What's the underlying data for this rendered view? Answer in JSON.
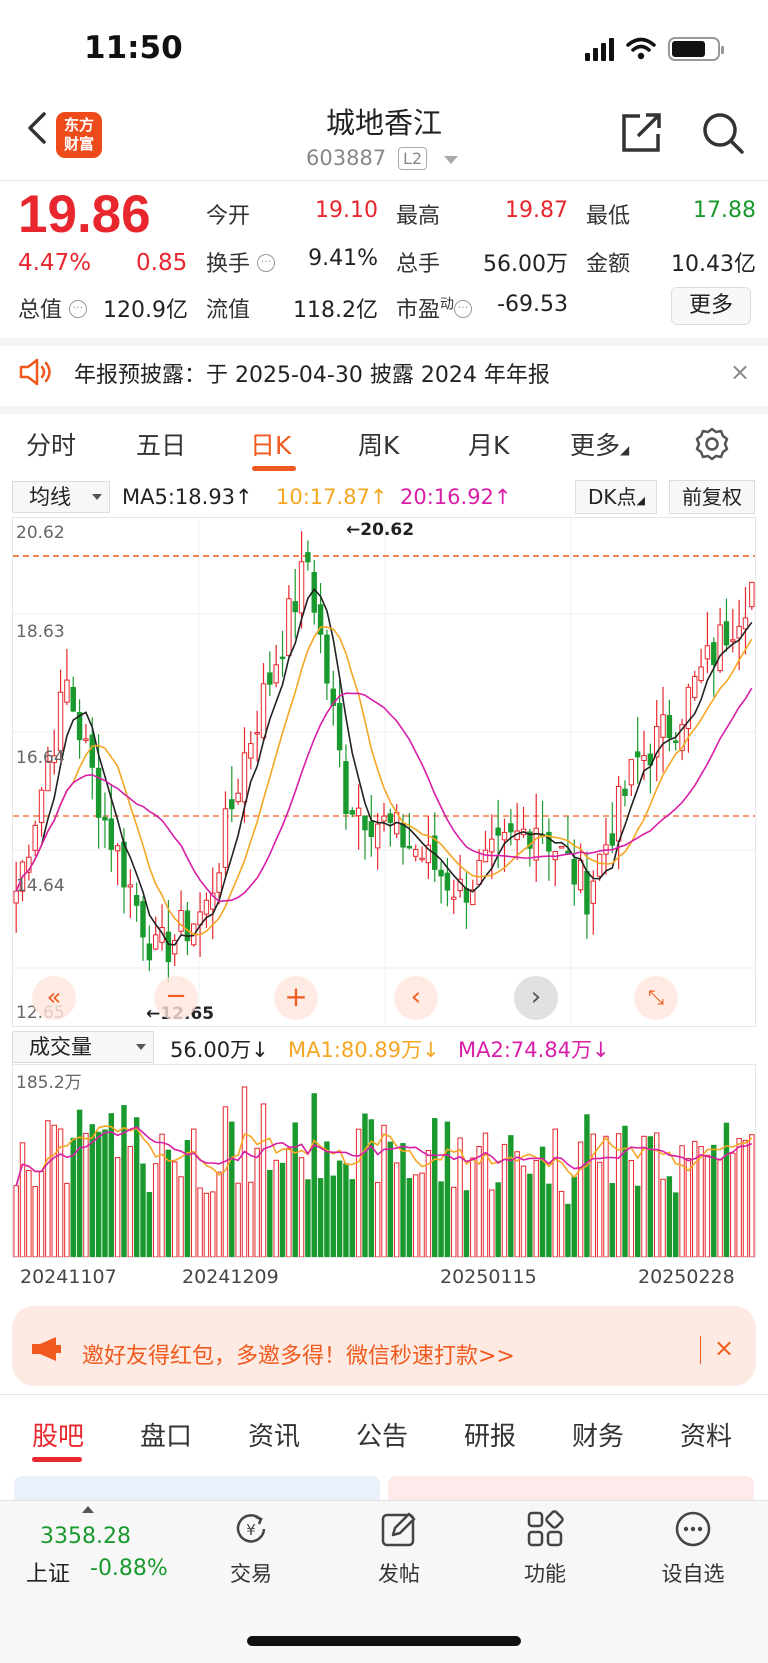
{
  "status_bar": {
    "time": "11:50"
  },
  "header": {
    "logo_text_1": "东方",
    "logo_text_2": "财富",
    "stock_name": "城地香江",
    "stock_code": "603887",
    "level_badge": "L2"
  },
  "quote": {
    "price": "19.86",
    "change_pct": "4.47%",
    "change_abs": "0.85",
    "fields": [
      {
        "label": "今开",
        "value": "19.10",
        "color": "#e8262d"
      },
      {
        "label": "最高",
        "value": "19.87",
        "color": "#e8262d"
      },
      {
        "label": "最低",
        "value": "17.88",
        "color": "#1a9a2e"
      },
      {
        "label": "换手",
        "value": "9.41%",
        "color": "#222222"
      },
      {
        "label": "总手",
        "value": "56.00万",
        "color": "#222222"
      },
      {
        "label": "金额",
        "value": "10.43亿",
        "color": "#222222"
      },
      {
        "label": "总值",
        "value": "120.9亿",
        "color": "#222222"
      },
      {
        "label": "流值",
        "value": "118.2亿",
        "color": "#222222"
      },
      {
        "label": "市盈",
        "superscript": "动",
        "value": "-69.53",
        "color": "#222222"
      }
    ],
    "more_label": "更多"
  },
  "notice": {
    "text": "年报预披露：于 2025-04-30 披露 2024 年年报",
    "close": "×"
  },
  "period_tabs": {
    "items": [
      "分时",
      "五日",
      "日K",
      "周K",
      "月K",
      "更多"
    ],
    "active": "日K"
  },
  "indicator": {
    "select_label": "均线",
    "ma5": "MA5:18.93",
    "ma10": "10:17.87",
    "ma20": "20:16.92",
    "dk_label": "DK点",
    "adjust_label": "前复权"
  },
  "kline": {
    "y_labels": [
      "20.62",
      "18.63",
      "16.64",
      "14.64",
      "12.65"
    ],
    "max_mark": "←20.62",
    "min_mark": "←12.65",
    "colors": {
      "up": "#e8262d",
      "down": "#1a9a2e",
      "ma5": "#222222",
      "ma10": "#f5a623",
      "ma20": "#d81ea8"
    }
  },
  "volume": {
    "select_label": "成交量",
    "current": "56.00万",
    "ma1": "MA1:80.89万",
    "ma2": "MA2:74.84万",
    "max_label": "185.2万"
  },
  "dates": [
    "20241107",
    "20241209",
    "20250115",
    "20250228"
  ],
  "banner": {
    "text": "邀好友得红包，多邀多得！微信秒速打款>>",
    "close": "×"
  },
  "content_tabs": {
    "items": [
      "股吧",
      "盘口",
      "资讯",
      "公告",
      "研报",
      "财务",
      "资料"
    ],
    "active": "股吧"
  },
  "bottom_nav": {
    "index_value": "3358.28",
    "index_name": "上证",
    "index_change": "-0.88%",
    "items": [
      "交易",
      "发帖",
      "功能",
      "设自选"
    ]
  }
}
